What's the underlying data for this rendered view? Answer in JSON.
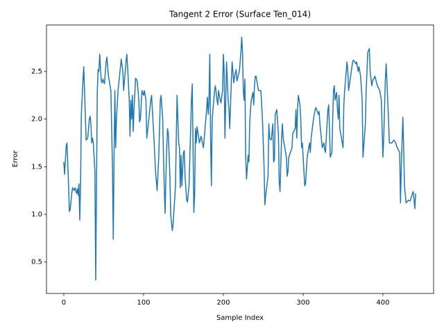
{
  "chart_data": {
    "type": "line",
    "title": "Tangent 2 Error (Surface Ten_014)",
    "x_label": "Sample Index",
    "y_label": "Error",
    "grid": false,
    "xlim": [
      -21.7,
      463.5
    ],
    "ylim": [
      0.17,
      2.988
    ],
    "xticks": [
      0,
      100,
      200,
      300,
      400
    ],
    "yticks": [
      0.5,
      {
        "value": 1.0,
        "label": "1.0"
      },
      1.5,
      {
        "value": 2.0,
        "label": "2.0"
      },
      2.5
    ],
    "series": [
      {
        "color": "#1f77b4",
        "x": [
          0,
          1,
          3,
          4,
          6,
          7,
          8,
          10,
          11,
          13,
          14,
          16,
          17,
          18,
          19,
          20,
          21,
          22,
          24,
          25,
          26,
          28,
          30,
          32,
          33,
          34,
          35,
          36,
          37,
          38,
          39,
          40,
          42,
          43,
          44,
          45,
          47,
          48,
          49,
          51,
          53,
          54,
          56,
          59,
          61,
          62,
          63,
          64,
          65,
          66,
          68,
          71,
          72,
          74,
          75,
          78,
          79,
          80,
          82,
          83,
          84,
          85,
          86,
          87,
          88,
          90,
          92,
          94,
          95,
          96,
          98,
          100,
          101,
          103,
          104,
          106,
          109,
          110,
          111,
          113,
          115,
          117,
          119,
          121,
          122,
          124,
          125,
          126,
          127,
          128,
          129,
          130,
          131,
          133,
          134,
          136,
          137,
          140,
          141,
          142,
          144,
          145,
          146,
          147,
          148,
          150,
          151,
          152,
          154,
          155,
          157,
          159,
          160,
          161,
          162,
          163,
          164,
          165,
          166,
          167,
          170,
          172,
          173,
          175,
          177,
          179,
          180,
          181,
          182,
          183,
          184,
          185,
          186,
          189,
          190,
          192,
          193,
          194,
          196,
          197,
          199,
          200,
          201,
          202,
          203,
          204,
          205,
          206,
          207,
          208,
          210,
          211,
          212,
          213,
          214,
          216,
          217,
          220,
          222,
          223,
          224,
          225,
          226,
          227,
          228,
          229,
          231,
          232,
          233,
          234,
          235,
          237,
          238,
          239,
          240,
          241,
          243,
          244,
          247,
          249,
          251,
          252,
          253,
          256,
          257,
          258,
          260,
          262,
          263,
          264,
          265,
          267,
          269,
          270,
          271,
          273,
          274,
          275,
          276,
          279,
          280,
          281,
          282,
          284,
          286,
          287,
          290,
          291,
          292,
          293,
          294,
          296,
          297,
          298,
          299,
          302,
          303,
          305,
          308,
          309,
          310,
          313,
          315,
          316,
          319,
          320,
          321,
          324,
          326,
          327,
          328,
          331,
          332,
          333,
          334,
          336,
          338,
          339,
          340,
          342,
          343,
          344,
          345,
          346,
          348,
          350,
          351,
          352,
          355,
          356,
          357,
          360,
          362,
          363,
          366,
          367,
          369,
          370,
          372,
          374,
          375,
          378,
          379,
          381,
          383,
          384,
          386,
          387,
          390,
          393,
          396,
          398,
          400,
          401,
          403,
          404,
          405,
          407,
          408,
          411,
          414,
          416,
          418,
          421,
          422,
          423,
          425,
          426,
          427,
          429,
          432,
          434,
          437,
          438,
          440,
          441
        ],
        "values": [
          1.55,
          1.42,
          1.72,
          1.75,
          1.3,
          1.03,
          1.05,
          1.22,
          1.28,
          1.25,
          1.28,
          1.22,
          1.27,
          1.2,
          1.32,
          0.94,
          1.3,
          2.05,
          2.4,
          2.55,
          2.3,
          1.78,
          1.8,
          2.0,
          2.03,
          1.95,
          1.75,
          1.8,
          1.75,
          1.6,
          1.45,
          0.31,
          2.3,
          2.52,
          2.5,
          2.68,
          2.4,
          2.38,
          2.42,
          2.37,
          2.6,
          2.65,
          2.45,
          2.3,
          1.5,
          0.74,
          1.6,
          2.3,
          1.7,
          2.0,
          2.3,
          2.55,
          2.63,
          2.5,
          2.3,
          2.6,
          2.68,
          2.55,
          2.2,
          1.82,
          2.2,
          2.0,
          2.25,
          1.87,
          2.1,
          2.43,
          2.4,
          2.2,
          1.97,
          2.0,
          2.3,
          2.25,
          2.3,
          2.2,
          1.8,
          1.95,
          2.2,
          2.25,
          2.1,
          1.8,
          1.45,
          1.25,
          1.6,
          2.2,
          2.25,
          2.0,
          1.6,
          1.25,
          1.01,
          1.4,
          1.7,
          1.9,
          1.85,
          1.4,
          1.0,
          0.83,
          0.9,
          1.3,
          1.8,
          2.25,
          1.75,
          1.7,
          1.28,
          1.62,
          1.3,
          1.65,
          1.67,
          1.4,
          1.15,
          1.13,
          1.3,
          1.9,
          2.2,
          2.37,
          1.7,
          1.02,
          1.2,
          1.9,
          1.75,
          1.92,
          1.75,
          1.82,
          1.78,
          1.7,
          1.9,
          2.1,
          2.23,
          2.05,
          2.2,
          2.68,
          1.8,
          1.3,
          2.0,
          2.3,
          2.35,
          2.2,
          2.15,
          2.3,
          2.2,
          2.17,
          2.3,
          2.68,
          2.5,
          1.8,
          2.2,
          2.6,
          2.4,
          2.2,
          2.1,
          1.9,
          2.4,
          2.6,
          2.5,
          2.38,
          2.45,
          2.52,
          2.4,
          2.5,
          2.7,
          2.86,
          2.7,
          2.3,
          2.2,
          2.42,
          1.6,
          1.37,
          1.62,
          1.55,
          1.95,
          2.1,
          2.2,
          2.28,
          2.15,
          2.35,
          2.45,
          2.45,
          2.35,
          2.3,
          2.3,
          2.0,
          1.5,
          1.1,
          1.2,
          1.4,
          1.95,
          1.8,
          1.78,
          1.95,
          1.55,
          1.57,
          2.05,
          2.1,
          1.85,
          1.35,
          1.24,
          1.8,
          1.95,
          1.8,
          1.75,
          1.6,
          1.4,
          1.45,
          1.6,
          1.65,
          1.7,
          1.85,
          1.9,
          2.1,
          1.8,
          2.1,
          2.25,
          2.15,
          2.0,
          1.7,
          1.75,
          1.3,
          1.32,
          1.6,
          1.75,
          1.65,
          1.8,
          2.0,
          2.1,
          2.12,
          2.05,
          2.08,
          1.95,
          1.7,
          1.75,
          1.68,
          1.65,
          2.1,
          2.15,
          1.9,
          1.6,
          1.65,
          2.3,
          2.35,
          2.2,
          2.28,
          2.1,
          2.0,
          2.25,
          1.9,
          1.8,
          1.7,
          2.15,
          2.3,
          2.6,
          2.5,
          2.3,
          2.48,
          2.6,
          2.62,
          2.58,
          2.6,
          2.5,
          2.55,
          2.45,
          2.2,
          1.6,
          1.95,
          2.3,
          2.7,
          2.74,
          2.5,
          2.35,
          2.4,
          2.45,
          2.35,
          2.3,
          2.2,
          1.6,
          1.8,
          2.4,
          2.58,
          2.4,
          2.0,
          1.75,
          1.75,
          1.78,
          1.75,
          1.7,
          1.65,
          1.12,
          1.5,
          2.02,
          1.7,
          1.3,
          1.12,
          1.15,
          1.14,
          1.22,
          1.24,
          1.06,
          1.22
        ]
      }
    ]
  }
}
